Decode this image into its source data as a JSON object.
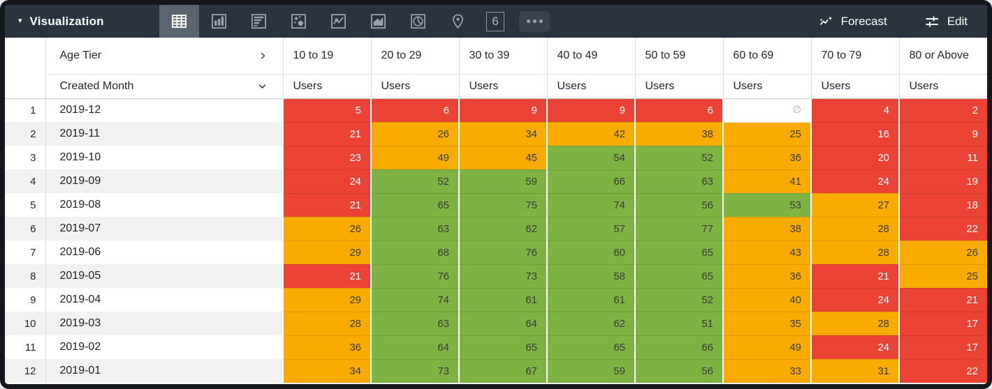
{
  "toolbar": {
    "collapse_caret": "▾",
    "title": "Visualization",
    "viz_tabs": [
      {
        "name": "table",
        "selected": true
      },
      {
        "name": "column-chart",
        "selected": false
      },
      {
        "name": "bar-chart",
        "selected": false
      },
      {
        "name": "scatter-plot",
        "selected": false
      },
      {
        "name": "line-chart",
        "selected": false
      },
      {
        "name": "area-chart",
        "selected": false
      },
      {
        "name": "pie-chart",
        "selected": false
      },
      {
        "name": "map",
        "selected": false
      },
      {
        "name": "single-value",
        "selected": false,
        "glyph": "6"
      },
      {
        "name": "more-options",
        "selected": false
      }
    ],
    "forecast_label": "Forecast",
    "edit_label": "Edit"
  },
  "table": {
    "pivot_field": "Age Tier",
    "pivot_expand_icon": "chevron-right",
    "row_field": "Created Month",
    "row_field_sort_icon": "chevron-down",
    "column_headers": [
      "10 to 19",
      "20 to 29",
      "30 to 39",
      "40 to 49",
      "50 to 59",
      "60 to 69",
      "70 to 79",
      "80 or Above"
    ],
    "measure_label": "Users",
    "null_display": "∅",
    "rows": [
      {
        "row_number": "1",
        "month": "2019-12",
        "values": [
          5,
          6,
          9,
          9,
          6,
          null,
          4,
          2
        ],
        "cell_colors": [
          "red",
          "red",
          "red",
          "red",
          "red",
          "none",
          "red",
          "red"
        ]
      },
      {
        "row_number": "2",
        "month": "2019-11",
        "values": [
          21,
          26,
          34,
          42,
          38,
          25,
          16,
          9
        ],
        "cell_colors": [
          "red",
          "orange",
          "orange",
          "orange",
          "orange",
          "orange",
          "red",
          "red"
        ]
      },
      {
        "row_number": "3",
        "month": "2019-10",
        "values": [
          23,
          49,
          45,
          54,
          52,
          36,
          20,
          11
        ],
        "cell_colors": [
          "red",
          "orange",
          "orange",
          "green",
          "green",
          "orange",
          "red",
          "red"
        ]
      },
      {
        "row_number": "4",
        "month": "2019-09",
        "values": [
          24,
          52,
          59,
          66,
          63,
          41,
          24,
          19
        ],
        "cell_colors": [
          "red",
          "green",
          "green",
          "green",
          "green",
          "orange",
          "red",
          "red"
        ]
      },
      {
        "row_number": "5",
        "month": "2019-08",
        "values": [
          21,
          65,
          75,
          74,
          56,
          53,
          27,
          18
        ],
        "cell_colors": [
          "red",
          "green",
          "green",
          "green",
          "green",
          "green",
          "orange",
          "red"
        ]
      },
      {
        "row_number": "6",
        "month": "2019-07",
        "values": [
          26,
          63,
          62,
          57,
          77,
          38,
          28,
          22
        ],
        "cell_colors": [
          "orange",
          "green",
          "green",
          "green",
          "green",
          "orange",
          "orange",
          "red"
        ]
      },
      {
        "row_number": "7",
        "month": "2019-06",
        "values": [
          29,
          68,
          76,
          60,
          65,
          43,
          28,
          26
        ],
        "cell_colors": [
          "orange",
          "green",
          "green",
          "green",
          "green",
          "orange",
          "orange",
          "orange"
        ]
      },
      {
        "row_number": "8",
        "month": "2019-05",
        "values": [
          21,
          76,
          73,
          58,
          65,
          36,
          21,
          25
        ],
        "cell_colors": [
          "red",
          "green",
          "green",
          "green",
          "green",
          "orange",
          "red",
          "orange"
        ]
      },
      {
        "row_number": "9",
        "month": "2019-04",
        "values": [
          29,
          74,
          61,
          61,
          52,
          40,
          24,
          21
        ],
        "cell_colors": [
          "orange",
          "green",
          "green",
          "green",
          "green",
          "orange",
          "red",
          "red"
        ]
      },
      {
        "row_number": "10",
        "month": "2019-03",
        "values": [
          28,
          63,
          64,
          62,
          51,
          35,
          28,
          17
        ],
        "cell_colors": [
          "orange",
          "green",
          "green",
          "green",
          "green",
          "orange",
          "orange",
          "red"
        ]
      },
      {
        "row_number": "11",
        "month": "2019-02",
        "values": [
          36,
          64,
          65,
          65,
          66,
          49,
          24,
          17
        ],
        "cell_colors": [
          "orange",
          "green",
          "green",
          "green",
          "green",
          "orange",
          "red",
          "red"
        ]
      },
      {
        "row_number": "12",
        "month": "2019-01",
        "values": [
          34,
          73,
          67,
          59,
          56,
          33,
          31,
          22
        ],
        "cell_colors": [
          "orange",
          "green",
          "green",
          "green",
          "green",
          "orange",
          "orange",
          "red"
        ]
      }
    ]
  },
  "colors": {
    "red": "#EA4335",
    "orange": "#F9AB00",
    "green": "#7CB342",
    "toolbar_bg": "#2B333E",
    "selected_tab_bg": "#5B6570",
    "icon_gray": "#9AA3AD",
    "row_stripe": "#F1F1F1"
  }
}
